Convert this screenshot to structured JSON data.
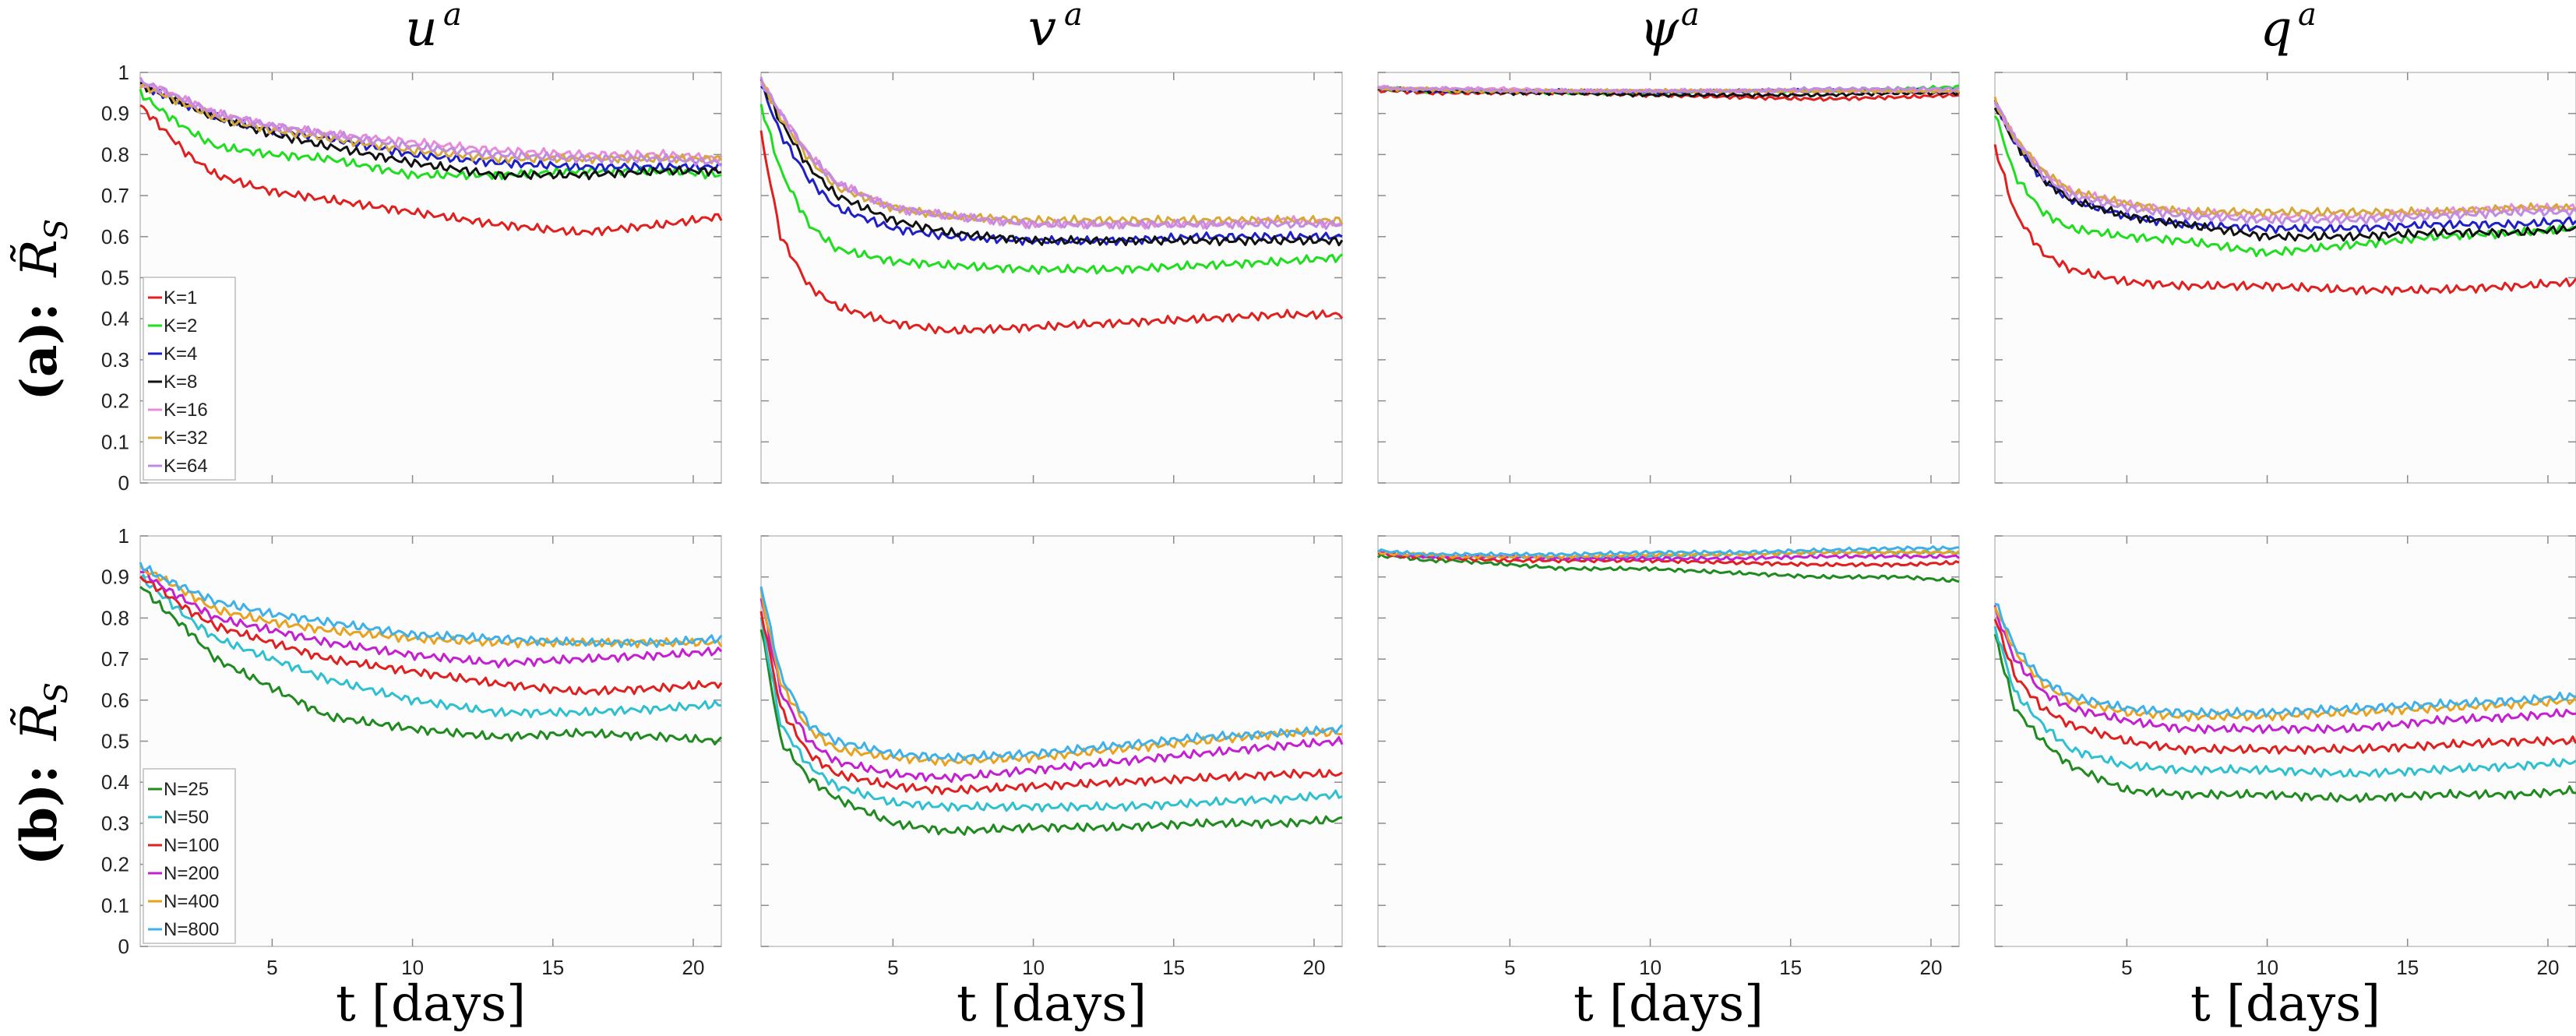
{
  "chart_data": {
    "type": "line",
    "columns": [
      {
        "var": "u",
        "sup": "a"
      },
      {
        "var": "v",
        "sup": "a"
      },
      {
        "var": "ψ",
        "sup": "a"
      },
      {
        "var": "q",
        "sup": "a"
      }
    ],
    "rows": [
      {
        "prefix": "(a):",
        "symbol": "R̃",
        "subscript": "S"
      },
      {
        "prefix": "(b):",
        "symbol": "R̃",
        "subscript": "S"
      }
    ],
    "xlabel": "t [days]",
    "xlim": [
      0.3,
      21
    ],
    "ylim": [
      0,
      1
    ],
    "xticks": [
      5,
      10,
      15,
      20
    ],
    "yticks": [
      0,
      0.1,
      0.2,
      0.3,
      0.4,
      0.5,
      0.6,
      0.7,
      0.8,
      0.9,
      1
    ],
    "ytick_labels": [
      "0",
      "0.1",
      "0.2",
      "0.3",
      "0.4",
      "0.5",
      "0.6",
      "0.7",
      "0.8",
      "0.9",
      "1"
    ],
    "xtick_labels": [
      "5",
      "10",
      "15",
      "20"
    ],
    "sample_x": [
      0.3,
      1,
      2,
      3,
      5,
      7,
      10,
      13,
      16,
      19,
      21
    ],
    "panels": [
      {
        "row": 0,
        "col": 0,
        "legend": true,
        "series": [
          {
            "name": "K=1",
            "color": "#e01f1f",
            "values": [
              0.92,
              0.87,
              0.8,
              0.75,
              0.71,
              0.69,
              0.66,
              0.63,
              0.61,
              0.63,
              0.65
            ]
          },
          {
            "name": "K=2",
            "color": "#1fdd1f",
            "values": [
              0.95,
              0.91,
              0.86,
              0.82,
              0.8,
              0.79,
              0.75,
              0.75,
              0.76,
              0.76,
              0.75
            ]
          },
          {
            "name": "K=4",
            "color": "#1f1fc8",
            "values": [
              0.97,
              0.95,
              0.92,
              0.89,
              0.86,
              0.84,
              0.8,
              0.78,
              0.77,
              0.77,
              0.77
            ]
          },
          {
            "name": "K=8",
            "color": "#111111",
            "values": [
              0.97,
              0.95,
              0.92,
              0.89,
              0.85,
              0.82,
              0.78,
              0.75,
              0.75,
              0.76,
              0.76
            ]
          },
          {
            "name": "K=16",
            "color": "#e88cd8",
            "values": [
              0.97,
              0.96,
              0.93,
              0.9,
              0.87,
              0.85,
              0.83,
              0.81,
              0.8,
              0.8,
              0.79
            ]
          },
          {
            "name": "K=32",
            "color": "#d6a83a",
            "values": [
              0.97,
              0.95,
              0.92,
              0.89,
              0.86,
              0.84,
              0.81,
              0.79,
              0.79,
              0.79,
              0.79
            ]
          },
          {
            "name": "K=64",
            "color": "#c08be0",
            "values": [
              0.98,
              0.96,
              0.93,
              0.9,
              0.87,
              0.85,
              0.82,
              0.8,
              0.79,
              0.79,
              0.78
            ]
          }
        ]
      },
      {
        "row": 0,
        "col": 1,
        "legend": false,
        "series": [
          {
            "name": "K=1",
            "color": "#e01f1f",
            "values": [
              0.85,
              0.6,
              0.48,
              0.43,
              0.39,
              0.37,
              0.38,
              0.39,
              0.4,
              0.41,
              0.41
            ]
          },
          {
            "name": "K=2",
            "color": "#1fdd1f",
            "values": [
              0.92,
              0.76,
              0.63,
              0.57,
              0.54,
              0.53,
              0.52,
              0.52,
              0.53,
              0.54,
              0.55
            ]
          },
          {
            "name": "K=4",
            "color": "#1f1fc8",
            "values": [
              0.97,
              0.85,
              0.74,
              0.67,
              0.62,
              0.6,
              0.59,
              0.59,
              0.6,
              0.6,
              0.6
            ]
          },
          {
            "name": "K=8",
            "color": "#111111",
            "values": [
              0.98,
              0.88,
              0.77,
              0.7,
              0.64,
              0.61,
              0.59,
              0.59,
              0.59,
              0.59,
              0.59
            ]
          },
          {
            "name": "K=16",
            "color": "#e88cd8",
            "values": [
              0.98,
              0.9,
              0.8,
              0.73,
              0.67,
              0.65,
              0.63,
              0.63,
              0.63,
              0.64,
              0.63
            ]
          },
          {
            "name": "K=32",
            "color": "#d6a83a",
            "values": [
              0.98,
              0.89,
              0.79,
              0.72,
              0.67,
              0.65,
              0.64,
              0.64,
              0.64,
              0.64,
              0.64
            ]
          },
          {
            "name": "K=64",
            "color": "#c08be0",
            "values": [
              0.98,
              0.9,
              0.8,
              0.73,
              0.67,
              0.65,
              0.63,
              0.63,
              0.63,
              0.63,
              0.63
            ]
          }
        ]
      },
      {
        "row": 0,
        "col": 2,
        "legend": false,
        "series": [
          {
            "name": "K=1",
            "color": "#e01f1f",
            "values": [
              0.955,
              0.955,
              0.95,
              0.95,
              0.95,
              0.95,
              0.945,
              0.94,
              0.935,
              0.94,
              0.945
            ]
          },
          {
            "name": "K=2",
            "color": "#1fdd1f",
            "values": [
              0.96,
              0.96,
              0.955,
              0.955,
              0.955,
              0.95,
              0.95,
              0.955,
              0.955,
              0.96,
              0.965
            ]
          },
          {
            "name": "K=4",
            "color": "#1f1fc8",
            "values": [
              0.96,
              0.96,
              0.955,
              0.955,
              0.955,
              0.955,
              0.95,
              0.955,
              0.955,
              0.955,
              0.955
            ]
          },
          {
            "name": "K=8",
            "color": "#111111",
            "values": [
              0.96,
              0.96,
              0.955,
              0.955,
              0.95,
              0.95,
              0.945,
              0.945,
              0.945,
              0.95,
              0.95
            ]
          },
          {
            "name": "K=16",
            "color": "#e88cd8",
            "values": [
              0.965,
              0.96,
              0.96,
              0.96,
              0.96,
              0.955,
              0.955,
              0.955,
              0.955,
              0.955,
              0.955
            ]
          },
          {
            "name": "K=32",
            "color": "#d6a83a",
            "values": [
              0.96,
              0.96,
              0.96,
              0.955,
              0.955,
              0.955,
              0.955,
              0.955,
              0.955,
              0.955,
              0.955
            ]
          },
          {
            "name": "K=64",
            "color": "#c08be0",
            "values": [
              0.965,
              0.96,
              0.96,
              0.96,
              0.955,
              0.955,
              0.955,
              0.955,
              0.96,
              0.96,
              0.96
            ]
          }
        ]
      },
      {
        "row": 0,
        "col": 3,
        "legend": false,
        "series": [
          {
            "name": "K=1",
            "color": "#e01f1f",
            "values": [
              0.82,
              0.66,
              0.56,
              0.52,
              0.49,
              0.48,
              0.48,
              0.47,
              0.47,
              0.48,
              0.49
            ]
          },
          {
            "name": "K=2",
            "color": "#1fdd1f",
            "values": [
              0.9,
              0.75,
              0.66,
              0.62,
              0.6,
              0.59,
              0.56,
              0.58,
              0.6,
              0.61,
              0.62
            ]
          },
          {
            "name": "K=4",
            "color": "#1f1fc8",
            "values": [
              0.93,
              0.83,
              0.74,
              0.69,
              0.65,
              0.63,
              0.62,
              0.62,
              0.63,
              0.63,
              0.64
            ]
          },
          {
            "name": "K=8",
            "color": "#111111",
            "values": [
              0.92,
              0.83,
              0.74,
              0.69,
              0.65,
              0.63,
              0.6,
              0.6,
              0.61,
              0.61,
              0.62
            ]
          },
          {
            "name": "K=16",
            "color": "#e88cd8",
            "values": [
              0.93,
              0.84,
              0.76,
              0.71,
              0.68,
              0.66,
              0.65,
              0.65,
              0.66,
              0.67,
              0.67
            ]
          },
          {
            "name": "K=32",
            "color": "#d6a83a",
            "values": [
              0.93,
              0.84,
              0.76,
              0.71,
              0.68,
              0.66,
              0.66,
              0.66,
              0.66,
              0.67,
              0.67
            ]
          },
          {
            "name": "K=64",
            "color": "#c08be0",
            "values": [
              0.93,
              0.84,
              0.75,
              0.7,
              0.67,
              0.65,
              0.64,
              0.64,
              0.65,
              0.66,
              0.66
            ]
          }
        ]
      },
      {
        "row": 1,
        "col": 0,
        "legend": true,
        "series": [
          {
            "name": "N=25",
            "color": "#1f8a1f",
            "values": [
              0.88,
              0.83,
              0.77,
              0.7,
              0.63,
              0.56,
              0.53,
              0.51,
              0.52,
              0.51,
              0.5
            ]
          },
          {
            "name": "N=50",
            "color": "#2fc0d0",
            "values": [
              0.9,
              0.86,
              0.8,
              0.75,
              0.7,
              0.65,
              0.6,
              0.57,
              0.57,
              0.58,
              0.59
            ]
          },
          {
            "name": "N=100",
            "color": "#e01f1f",
            "values": [
              0.9,
              0.87,
              0.82,
              0.78,
              0.74,
              0.7,
              0.67,
              0.64,
              0.62,
              0.63,
              0.64
            ]
          },
          {
            "name": "N=200",
            "color": "#c41fd0",
            "values": [
              0.92,
              0.88,
              0.84,
              0.8,
              0.77,
              0.74,
              0.71,
              0.69,
              0.7,
              0.71,
              0.72
            ]
          },
          {
            "name": "N=400",
            "color": "#e8a21f",
            "values": [
              0.92,
              0.9,
              0.86,
              0.82,
              0.79,
              0.77,
              0.75,
              0.74,
              0.74,
              0.74,
              0.74
            ]
          },
          {
            "name": "N=800",
            "color": "#3fb0e8",
            "values": [
              0.93,
              0.9,
              0.87,
              0.84,
              0.81,
              0.79,
              0.76,
              0.75,
              0.74,
              0.74,
              0.75
            ]
          }
        ]
      },
      {
        "row": 1,
        "col": 1,
        "legend": false,
        "series": [
          {
            "name": "N=25",
            "color": "#1f8a1f",
            "values": [
              0.78,
              0.5,
              0.41,
              0.36,
              0.3,
              0.28,
              0.29,
              0.29,
              0.3,
              0.3,
              0.31
            ]
          },
          {
            "name": "N=50",
            "color": "#2fc0d0",
            "values": [
              0.8,
              0.54,
              0.44,
              0.39,
              0.35,
              0.34,
              0.34,
              0.34,
              0.35,
              0.36,
              0.37
            ]
          },
          {
            "name": "N=100",
            "color": "#e01f1f",
            "values": [
              0.82,
              0.58,
              0.47,
              0.42,
              0.39,
              0.38,
              0.39,
              0.4,
              0.41,
              0.42,
              0.42
            ]
          },
          {
            "name": "N=200",
            "color": "#c41fd0",
            "values": [
              0.85,
              0.62,
              0.5,
              0.45,
              0.42,
              0.41,
              0.43,
              0.45,
              0.47,
              0.49,
              0.5
            ]
          },
          {
            "name": "N=400",
            "color": "#e8a21f",
            "values": [
              0.86,
              0.64,
              0.53,
              0.48,
              0.46,
              0.45,
              0.46,
              0.48,
              0.5,
              0.52,
              0.52
            ]
          },
          {
            "name": "N=800",
            "color": "#3fb0e8",
            "values": [
              0.88,
              0.66,
              0.54,
              0.5,
              0.47,
              0.46,
              0.47,
              0.49,
              0.51,
              0.52,
              0.53
            ]
          }
        ]
      },
      {
        "row": 1,
        "col": 2,
        "legend": false,
        "series": [
          {
            "name": "N=25",
            "color": "#1f8a1f",
            "values": [
              0.95,
              0.95,
              0.94,
              0.94,
              0.93,
              0.92,
              0.92,
              0.91,
              0.9,
              0.9,
              0.89
            ]
          },
          {
            "name": "N=50",
            "color": "#2fc0d0",
            "values": [
              0.96,
              0.955,
              0.95,
              0.95,
              0.95,
              0.945,
              0.95,
              0.955,
              0.96,
              0.96,
              0.96
            ]
          },
          {
            "name": "N=100",
            "color": "#e01f1f",
            "values": [
              0.96,
              0.95,
              0.95,
              0.945,
              0.94,
              0.94,
              0.94,
              0.935,
              0.93,
              0.93,
              0.935
            ]
          },
          {
            "name": "N=200",
            "color": "#c41fd0",
            "values": [
              0.96,
              0.955,
              0.95,
              0.95,
              0.95,
              0.945,
              0.945,
              0.945,
              0.95,
              0.95,
              0.95
            ]
          },
          {
            "name": "N=400",
            "color": "#e8a21f",
            "values": [
              0.96,
              0.955,
              0.955,
              0.95,
              0.95,
              0.95,
              0.955,
              0.955,
              0.96,
              0.96,
              0.96
            ]
          },
          {
            "name": "N=800",
            "color": "#3fb0e8",
            "values": [
              0.965,
              0.96,
              0.955,
              0.955,
              0.955,
              0.955,
              0.96,
              0.96,
              0.965,
              0.97,
              0.97
            ]
          }
        ]
      },
      {
        "row": 1,
        "col": 3,
        "legend": false,
        "series": [
          {
            "name": "N=25",
            "color": "#1f8a1f",
            "values": [
              0.76,
              0.58,
              0.5,
              0.44,
              0.38,
              0.37,
              0.37,
              0.36,
              0.37,
              0.37,
              0.38
            ]
          },
          {
            "name": "N=50",
            "color": "#2fc0d0",
            "values": [
              0.78,
              0.62,
              0.54,
              0.48,
              0.44,
              0.43,
              0.43,
              0.42,
              0.43,
              0.44,
              0.45
            ]
          },
          {
            "name": "N=100",
            "color": "#e01f1f",
            "values": [
              0.8,
              0.66,
              0.58,
              0.54,
              0.5,
              0.48,
              0.48,
              0.48,
              0.49,
              0.5,
              0.5
            ]
          },
          {
            "name": "N=200",
            "color": "#c41fd0",
            "values": [
              0.82,
              0.7,
              0.62,
              0.58,
              0.55,
              0.53,
              0.53,
              0.53,
              0.55,
              0.56,
              0.57
            ]
          },
          {
            "name": "N=400",
            "color": "#e8a21f",
            "values": [
              0.83,
              0.72,
              0.64,
              0.6,
              0.57,
              0.56,
              0.56,
              0.57,
              0.58,
              0.59,
              0.6
            ]
          },
          {
            "name": "N=800",
            "color": "#3fb0e8",
            "values": [
              0.84,
              0.73,
              0.65,
              0.61,
              0.58,
              0.57,
              0.57,
              0.58,
              0.59,
              0.6,
              0.61
            ]
          }
        ]
      }
    ]
  }
}
